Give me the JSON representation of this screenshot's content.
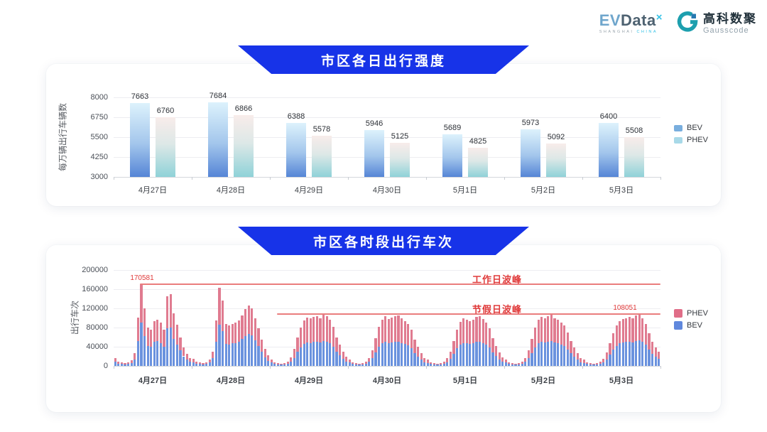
{
  "header": {
    "evdata_logo": {
      "ev": "EV",
      "data": "Data",
      "x": "×",
      "sub_left": "SHANGHAI",
      "sub_right": "CHINA"
    },
    "gausscode_logo": {
      "cn": "高科数聚",
      "en": "Gausscode"
    }
  },
  "colors": {
    "banner_blue": "#1733e8",
    "bev_gradient_top": "#ddf2fc",
    "bev_gradient_mid": "#a3c6ec",
    "bev_gradient_bottom": "#5585d6",
    "phev_gradient_top": "#f8ecea",
    "phev_gradient_mid": "#dde8e7",
    "phev_gradient_bottom": "#8fd2d8",
    "legend1_bev": "#79aede",
    "legend1_phev": "#a8d9e8",
    "bev_blue": "#6a92de",
    "phev_pink": "#e07b90",
    "legend2_phev": "#e06e88",
    "legend2_bev": "#6088dd",
    "peak_line_red": "#ea7d7d",
    "peak_text_red": "#e03a3a"
  },
  "chart_data": [
    {
      "id": "daily_intensity",
      "type": "bar",
      "title": "市区各日出行强度",
      "ylabel": "每万辆出行车辆数",
      "ylim": [
        3000,
        8000
      ],
      "yticks": [
        3000,
        4250,
        5500,
        6750,
        8000
      ],
      "grid": true,
      "legend_position": "right",
      "categories": [
        "4月27日",
        "4月28日",
        "4月29日",
        "4月30日",
        "5月1日",
        "5月2日",
        "5月3日"
      ],
      "series": [
        {
          "name": "BEV",
          "values": [
            7663,
            7684,
            6388,
            5946,
            5689,
            5973,
            6400
          ]
        },
        {
          "name": "PHEV",
          "values": [
            6760,
            6866,
            5578,
            5125,
            4825,
            5092,
            5508
          ]
        }
      ]
    },
    {
      "id": "hourly_trips",
      "type": "stacked-bar",
      "title": "市区各时段出行车次",
      "ylabel": "出行车次",
      "ylim": [
        0,
        200000
      ],
      "yticks": [
        0,
        40000,
        80000,
        120000,
        160000,
        200000
      ],
      "grid": true,
      "legend_position": "right",
      "legend": [
        "PHEV",
        "BEV"
      ],
      "annotations": [
        {
          "label": "工作日波峰",
          "value": 170581,
          "value_label": "170581"
        },
        {
          "label": "节假日波峰",
          "value": 108051,
          "value_label": "108051"
        }
      ],
      "days": [
        {
          "label": "4月27日",
          "bev": [
            9000,
            5000,
            4000,
            3000,
            4000,
            6000,
            14000,
            52000,
            91000,
            62000,
            42000,
            40000,
            50000,
            52000,
            48000,
            40000,
            78000,
            80000,
            57000,
            45000,
            32000,
            20000,
            13000,
            9000
          ],
          "phev": [
            8000,
            4000,
            3000,
            3000,
            3000,
            6000,
            13000,
            49000,
            79581,
            58000,
            38000,
            36000,
            44000,
            44000,
            42000,
            35000,
            67000,
            70000,
            52000,
            41000,
            28000,
            18000,
            12000,
            8000
          ]
        },
        {
          "label": "4月28日",
          "bev": [
            8000,
            5000,
            4000,
            3000,
            4000,
            7000,
            16000,
            50000,
            86000,
            72000,
            46000,
            45000,
            47000,
            48000,
            50000,
            56000,
            62000,
            67000,
            63000,
            53000,
            41000,
            29000,
            18000,
            11000
          ],
          "phev": [
            7000,
            4000,
            3000,
            3000,
            3000,
            6000,
            14000,
            45000,
            77000,
            65000,
            42000,
            40000,
            41000,
            43000,
            45000,
            49000,
            56000,
            59000,
            57000,
            47000,
            37000,
            26000,
            17000,
            11000
          ]
        },
        {
          "label": "4月29日",
          "bev": [
            7000,
            4000,
            3000,
            2500,
            3000,
            4500,
            9000,
            17000,
            29000,
            39000,
            46000,
            49000,
            48000,
            50000,
            51000,
            49000,
            52000,
            50000,
            47000,
            40000,
            29000,
            22000,
            15000,
            9000
          ],
          "phev": [
            7000,
            4000,
            3000,
            2500,
            3000,
            4500,
            9000,
            18000,
            31000,
            41000,
            49000,
            52000,
            51000,
            52000,
            53000,
            51000,
            55000,
            53000,
            49000,
            42000,
            31000,
            23000,
            15000,
            10000
          ]
        },
        {
          "label": "4月30日",
          "bev": [
            7000,
            4000,
            3000,
            2500,
            3000,
            4500,
            8500,
            16000,
            28000,
            40000,
            47000,
            50000,
            48000,
            49000,
            50000,
            51000,
            48000,
            46000,
            43000,
            37000,
            27000,
            20000,
            13000,
            8000
          ],
          "phev": [
            7000,
            4000,
            3000,
            2500,
            3000,
            4500,
            8500,
            17000,
            30000,
            42000,
            50000,
            53000,
            50000,
            52000,
            53000,
            54000,
            51000,
            48000,
            45000,
            38000,
            28000,
            20000,
            14000,
            9000
          ]
        },
        {
          "label": "5月1日",
          "bev": [
            6500,
            4000,
            3000,
            2500,
            3000,
            4500,
            8000,
            15000,
            25000,
            37000,
            45000,
            48000,
            47000,
            46000,
            47000,
            50000,
            51000,
            48000,
            44000,
            38000,
            28000,
            21000,
            14000,
            9000
          ],
          "phev": [
            6500,
            4000,
            3000,
            2500,
            3000,
            4500,
            8000,
            15000,
            27000,
            38000,
            47000,
            51000,
            49000,
            48000,
            50000,
            52000,
            53000,
            50000,
            46000,
            40000,
            30000,
            21000,
            14000,
            9000
          ]
        },
        {
          "label": "5月2日",
          "bev": [
            7000,
            4000,
            3000,
            2500,
            3000,
            4500,
            8500,
            16000,
            27000,
            39000,
            47000,
            50000,
            49000,
            50000,
            52000,
            49000,
            47000,
            44000,
            41000,
            34000,
            26000,
            19000,
            13000,
            8000
          ],
          "phev": [
            7000,
            4000,
            3000,
            2500,
            3000,
            4500,
            8500,
            16000,
            29000,
            41000,
            49000,
            52000,
            51000,
            53000,
            54000,
            51000,
            49000,
            46000,
            43000,
            36000,
            26000,
            19000,
            13000,
            9000
          ]
        },
        {
          "label": "5月3日",
          "bev": [
            6500,
            4000,
            3000,
            2500,
            3000,
            4500,
            7500,
            14000,
            24000,
            34000,
            42000,
            47000,
            49000,
            50000,
            51000,
            49000,
            52000,
            54000,
            50000,
            44000,
            34000,
            25000,
            19000,
            15000
          ],
          "phev": [
            6500,
            4000,
            3000,
            2500,
            3000,
            4500,
            7500,
            14000,
            24000,
            34000,
            43000,
            47000,
            49000,
            50000,
            51000,
            50000,
            53000,
            54051,
            50000,
            44000,
            34000,
            25000,
            19000,
            15000
          ]
        }
      ]
    }
  ]
}
